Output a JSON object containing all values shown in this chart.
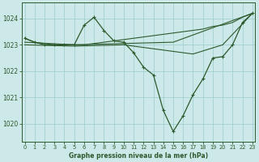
{
  "bg_color": "#cce8e8",
  "grid_color": "#99cccc",
  "line_color": "#2d5a2d",
  "ylim": [
    1019.3,
    1024.6
  ],
  "yticks": [
    1020,
    1021,
    1022,
    1023,
    1024
  ],
  "xlim": [
    -0.3,
    23.3
  ],
  "xticks": [
    0,
    1,
    2,
    3,
    4,
    5,
    6,
    7,
    8,
    9,
    10,
    11,
    12,
    13,
    14,
    15,
    16,
    17,
    18,
    19,
    20,
    21,
    22,
    23
  ],
  "xlabel": "Graphe pression niveau de la mer (hPa)",
  "series_main": {
    "x": [
      0,
      1,
      2,
      3,
      4,
      5,
      6,
      7,
      8,
      9,
      10,
      11,
      12,
      13,
      14,
      15,
      16,
      17,
      18,
      19,
      20,
      21,
      22,
      23
    ],
    "y": [
      1023.25,
      1023.1,
      1023.0,
      1023.0,
      1023.0,
      1023.0,
      1023.75,
      1024.05,
      1023.55,
      1023.15,
      1023.1,
      1022.7,
      1022.15,
      1021.85,
      1020.5,
      1019.7,
      1020.3,
      1021.1,
      1021.7,
      1022.5,
      1022.55,
      1023.0,
      1023.85,
      1024.2
    ]
  },
  "series_flat1": {
    "x": [
      0,
      1,
      2,
      3,
      4,
      5,
      6,
      7,
      8,
      9,
      10,
      11,
      12,
      13,
      14,
      15,
      16,
      17,
      18,
      19,
      20,
      21,
      22,
      23
    ],
    "y": [
      1023.25,
      1023.1,
      1023.05,
      1023.0,
      1023.0,
      1023.0,
      1023.0,
      1023.05,
      1023.1,
      1023.15,
      1023.2,
      1023.25,
      1023.3,
      1023.35,
      1023.4,
      1023.45,
      1023.5,
      1023.55,
      1023.6,
      1023.7,
      1023.75,
      1023.85,
      1024.05,
      1024.2
    ]
  },
  "series_flat2": {
    "x": [
      0,
      5,
      10,
      15,
      23
    ],
    "y": [
      1023.1,
      1023.0,
      1023.05,
      1023.1,
      1024.2
    ]
  },
  "series_flat3": {
    "x": [
      0,
      5,
      10,
      15,
      17,
      20,
      23
    ],
    "y": [
      1023.0,
      1022.95,
      1023.0,
      1022.75,
      1022.65,
      1023.0,
      1024.2
    ]
  }
}
